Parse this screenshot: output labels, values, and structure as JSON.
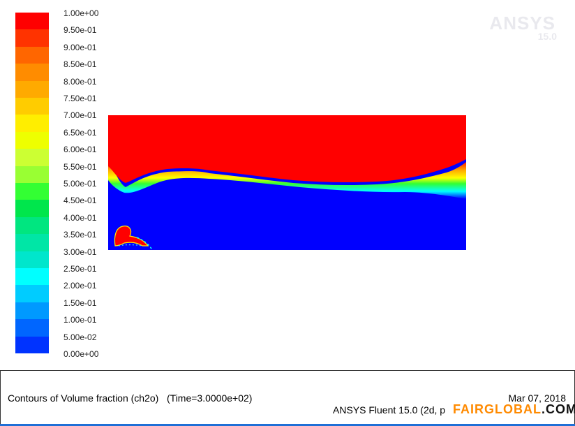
{
  "colorbar": {
    "labels": [
      "1.00e+00",
      "9.50e-01",
      "9.00e-01",
      "8.50e-01",
      "8.00e-01",
      "7.50e-01",
      "7.00e-01",
      "6.50e-01",
      "6.00e-01",
      "5.50e-01",
      "5.00e-01",
      "4.50e-01",
      "4.00e-01",
      "3.50e-01",
      "3.00e-01",
      "2.50e-01",
      "2.00e-01",
      "1.50e-01",
      "1.00e-01",
      "5.00e-02",
      "0.00e+00"
    ],
    "colors": [
      "#ff0000",
      "#ff3300",
      "#ff6600",
      "#ff8c00",
      "#ffaa00",
      "#ffcc00",
      "#ffee00",
      "#eeff00",
      "#ccff33",
      "#99ff33",
      "#33ff33",
      "#00e64c",
      "#00e680",
      "#00e6a6",
      "#00e6cc",
      "#00ffff",
      "#00ccff",
      "#0099ff",
      "#0066ff",
      "#0033ff",
      "#0000ff"
    ]
  },
  "watermark": {
    "brand": "ANSYS",
    "version": "15.0"
  },
  "footer": {
    "caption": "Contours of Volume fraction (ch2o)   (Time=3.0000e+02)",
    "date": "Mar 07, 2018",
    "product": "ANSYS Fluent 15.0 (2d, p",
    "badge_a": "FAIRGLOBAL",
    "badge_b": ".COM.CN"
  },
  "colors": {
    "liquid": "#0000ff",
    "gas": "#ff0000",
    "footer_border": "#333333",
    "accent_bar": "#1f6fd6"
  }
}
